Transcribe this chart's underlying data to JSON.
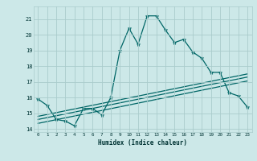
{
  "xlabel": "Humidex (Indice chaleur)",
  "bg_color": "#cce8e8",
  "grid_color": "#aacccc",
  "line_color": "#006666",
  "x_ticks": [
    0,
    1,
    2,
    3,
    4,
    5,
    6,
    7,
    8,
    9,
    10,
    11,
    12,
    13,
    14,
    15,
    16,
    17,
    18,
    19,
    20,
    21,
    22,
    23
  ],
  "y_ticks": [
    14,
    15,
    16,
    17,
    18,
    19,
    20,
    21
  ],
  "xlim": [
    -0.5,
    23.5
  ],
  "ylim": [
    13.8,
    21.8
  ],
  "line1_x": [
    0,
    1,
    2,
    3,
    4,
    5,
    6,
    7,
    8,
    9,
    10,
    11,
    12,
    13,
    14,
    15,
    16,
    17,
    18,
    19,
    20,
    21,
    22,
    23
  ],
  "line1_y": [
    15.9,
    15.5,
    14.6,
    14.5,
    14.2,
    15.3,
    15.3,
    14.9,
    16.0,
    19.0,
    20.4,
    19.4,
    21.2,
    21.2,
    20.3,
    19.5,
    19.7,
    18.9,
    18.5,
    17.6,
    17.6,
    16.3,
    16.1,
    15.4
  ],
  "line2_x": [
    0,
    23
  ],
  "line2_y": [
    14.8,
    17.5
  ],
  "line3_x": [
    0,
    23
  ],
  "line3_y": [
    14.6,
    17.3
  ],
  "line4_x": [
    0,
    23
  ],
  "line4_y": [
    14.35,
    17.05
  ]
}
